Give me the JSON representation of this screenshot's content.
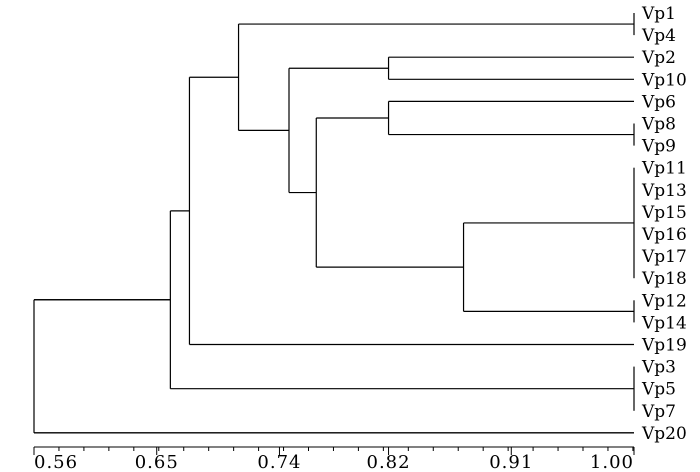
{
  "chart_data": {
    "type": "dendrogram",
    "axis": {
      "range": [
        0.56,
        1.0
      ],
      "ticks": [
        {
          "value": 0.56,
          "label": "0.56"
        },
        {
          "value": 0.65,
          "label": "0.65"
        },
        {
          "value": 0.74,
          "label": "0.74"
        },
        {
          "value": 0.82,
          "label": "0.82"
        },
        {
          "value": 0.91,
          "label": "0.91"
        },
        {
          "value": 1.0,
          "label": "1.00"
        }
      ],
      "minor_step": 0.0183
    },
    "leaves": [
      "Vp1",
      "Vp4",
      "Vp2",
      "Vp10",
      "Vp6",
      "Vp8",
      "Vp9",
      "Vp11",
      "Vp13",
      "Vp15",
      "Vp16",
      "Vp17",
      "Vp18",
      "Vp12",
      "Vp14",
      "Vp19",
      "Vp3",
      "Vp5",
      "Vp7",
      "Vp20"
    ],
    "merges": [
      {
        "id": "c1",
        "height": 1.0,
        "children": [
          "Vp1",
          "Vp4"
        ]
      },
      {
        "id": "c2",
        "height": 0.82,
        "children": [
          "Vp2",
          "Vp10"
        ]
      },
      {
        "id": "c3",
        "height": 1.0,
        "children": [
          "Vp8",
          "Vp9"
        ]
      },
      {
        "id": "c4",
        "height": 0.82,
        "children": [
          "Vp6",
          "c3"
        ]
      },
      {
        "id": "c5",
        "height": 1.0,
        "children": [
          "Vp11",
          "Vp13",
          "Vp15",
          "Vp16",
          "Vp17",
          "Vp18"
        ]
      },
      {
        "id": "c6",
        "height": 1.0,
        "children": [
          "Vp12",
          "Vp14"
        ]
      },
      {
        "id": "c7",
        "height": 0.875,
        "children": [
          "c5",
          "c6"
        ]
      },
      {
        "id": "c8",
        "height": 0.767,
        "children": [
          "c4",
          "c7"
        ]
      },
      {
        "id": "c9",
        "height": 0.747,
        "children": [
          "c2",
          "c8"
        ]
      },
      {
        "id": "c10",
        "height": 0.71,
        "children": [
          "c1",
          "c9"
        ]
      },
      {
        "id": "c11",
        "height": 0.674,
        "children": [
          "c10",
          "Vp19"
        ]
      },
      {
        "id": "c12",
        "height": 1.0,
        "children": [
          "Vp3",
          "Vp5",
          "Vp7"
        ]
      },
      {
        "id": "c13",
        "height": 0.66,
        "children": [
          "c11",
          "c12"
        ]
      },
      {
        "id": "c14",
        "height": 0.56,
        "children": [
          "c13",
          "Vp20"
        ]
      }
    ]
  }
}
